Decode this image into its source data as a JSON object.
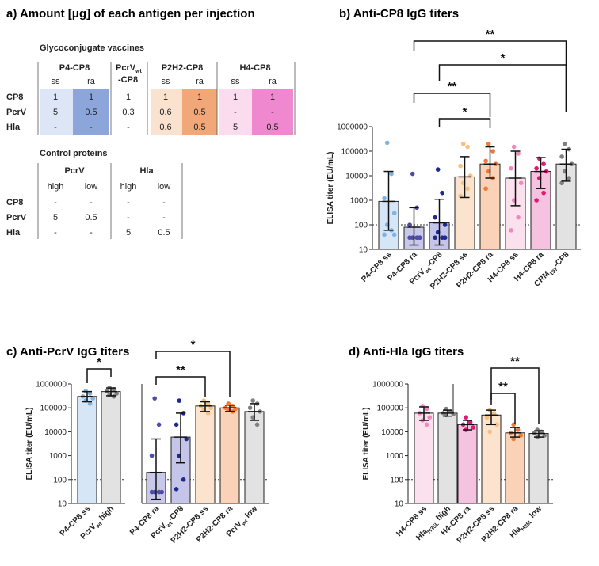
{
  "panel_a": {
    "title": "a) Amount [μg] of each antigen per injection",
    "gly": {
      "subtitle": "Glycoconjugate vaccines",
      "headers": [
        "P4-CP8",
        "PcrV",
        "wt",
        "-CP8",
        "P2H2-CP8",
        "H4-CP8"
      ],
      "subheaders": [
        "ss",
        "ra",
        "ss",
        "ra",
        "ss",
        "ra"
      ],
      "row_labels": [
        "CP8",
        "PcrV",
        "Hla"
      ],
      "rows": [
        [
          "1",
          "1",
          "1",
          "1",
          "1",
          "1",
          "1"
        ],
        [
          "5",
          "0.5",
          "0.3",
          "0.6",
          "0.5",
          "-",
          "-"
        ],
        [
          "-",
          "-",
          "-",
          "0.6",
          "0.5",
          "5",
          "0.5"
        ]
      ],
      "colors": {
        "p4_ss": "#dde6f7",
        "p4_ra": "#8ca6dc",
        "p2_ss": "#fbe2cf",
        "p2_ra": "#f2a778",
        "h4_ss": "#fbdcef",
        "h4_ra": "#f088cf"
      }
    },
    "ctrl": {
      "subtitle": "Control proteins",
      "headers": [
        "PcrV",
        "Hla"
      ],
      "subheaders": [
        "high",
        "low",
        "high",
        "low"
      ],
      "row_labels": [
        "CP8",
        "PcrV",
        "Hla"
      ],
      "rows": [
        [
          "-",
          "-",
          "-",
          "-"
        ],
        [
          "5",
          "0.5",
          "-",
          "-"
        ],
        [
          "-",
          "-",
          "5",
          "0.5"
        ]
      ]
    }
  },
  "panel_b": {
    "title": "b) Anti-CP8 IgG titers",
    "sig_labels": [
      "**",
      "*",
      "**",
      "*"
    ]
  },
  "panel_c": {
    "title": "c) Anti-PcrV IgG titers",
    "sig_labels": [
      "*",
      "*",
      "**"
    ]
  },
  "panel_d": {
    "title": "d) Anti-Hla IgG titers",
    "sig_labels": [
      "**",
      "**"
    ]
  },
  "chart_data": [
    {
      "id": "b",
      "type": "bar",
      "scale": "log",
      "title": "Anti-CP8 IgG titers",
      "ylabel": "ELISA titer (EU/mL)",
      "ylim": [
        10,
        1000000
      ],
      "yticks": [
        "10",
        "100",
        "1000",
        "10000",
        "100000",
        "1000000"
      ],
      "threshold": 100,
      "groups": [
        {
          "label": "P4-CP8 ss",
          "mean": 900,
          "lo": 60,
          "hi": 15000,
          "fill": "#d6e6f7",
          "dot": "#7fb3e2",
          "points": [
            220000,
            12000,
            1200,
            300,
            100,
            60,
            40,
            40
          ]
        },
        {
          "label": "P4-CP8 ra",
          "mean": 80,
          "lo": 15,
          "hi": 500,
          "fill": "#c8c8ea",
          "dot": "#4d4da8",
          "points": [
            12000,
            500,
            100,
            30,
            30,
            30,
            30,
            30
          ]
        },
        {
          "label": "PcrV",
          "sub": "wt",
          "tail": "-CP8",
          "mean": 120,
          "lo": 15,
          "hi": 1100,
          "fill": "#c5c5ea",
          "dot": "#1e2a8c",
          "points": [
            18000,
            2000,
            200,
            100,
            50,
            30,
            30,
            30
          ]
        },
        {
          "label": "P2H2-CP8 ss",
          "mean": 9000,
          "lo": 1300,
          "hi": 60000,
          "fill": "#fce3cd",
          "dot": "#f5c080",
          "points": [
            200000,
            150000,
            25000,
            10000,
            5000,
            3000,
            1500
          ]
        },
        {
          "label": "P2H2-CP8 ra",
          "mean": 30000,
          "lo": 8000,
          "hi": 150000,
          "fill": "#fad2b8",
          "dot": "#f07838",
          "points": [
            200000,
            100000,
            40000,
            30000,
            15000,
            8000,
            3000
          ]
        },
        {
          "label": "H4-CP8 ss",
          "mean": 8000,
          "lo": 600,
          "hi": 100000,
          "fill": "#fbe0ee",
          "dot": "#f088c0",
          "points": [
            150000,
            80000,
            20000,
            5000,
            1000,
            200,
            60
          ]
        },
        {
          "label": "H4-CP8 ra",
          "mean": 15000,
          "lo": 3000,
          "hi": 55000,
          "fill": "#f5c2e0",
          "dot": "#e01a72",
          "points": [
            50000,
            30000,
            20000,
            15000,
            8000,
            2000,
            1000
          ]
        },
        {
          "label": "CRM",
          "sub": "197",
          "tail": "-CP8",
          "mean": 30000,
          "lo": 6000,
          "hi": 120000,
          "fill": "#e2e2e2",
          "dot": "#808080",
          "points": [
            200000,
            120000,
            60000,
            30000,
            15000,
            8000,
            5000
          ]
        }
      ]
    },
    {
      "id": "c",
      "type": "bar",
      "scale": "log",
      "title": "Anti-PcrV IgG titers",
      "ylabel": "ELISA titer (EU/mL)",
      "ylim": [
        10,
        1000000
      ],
      "yticks": [
        "10",
        "100",
        "1000",
        "10000",
        "100000",
        "1000000"
      ],
      "threshold": 100,
      "groups": [
        {
          "label": "P4-CP8 ss",
          "mean": 300000,
          "lo": 180000,
          "hi": 480000,
          "fill": "#d6e6f7",
          "dot": "#7fb3e2",
          "points": [
            500000,
            400000,
            300000,
            250000,
            200000,
            150000
          ]
        },
        {
          "label": "PcrV",
          "sub": "wt",
          "tail": " high",
          "mean": 480000,
          "lo": 320000,
          "hi": 680000,
          "fill": "#e2e2e2",
          "dot": "#808080",
          "points": [
            700000,
            600000,
            500000,
            400000,
            350000,
            300000
          ]
        },
        {
          "label": "P4-CP8 ra",
          "mean": 200,
          "lo": 15,
          "hi": 5000,
          "fill": "#c8c8ea",
          "dot": "#4d4da8",
          "points": [
            250000,
            20000,
            1000,
            30,
            30,
            30,
            30
          ]
        },
        {
          "label": "PcrV",
          "sub": "wt",
          "tail": "-CP8",
          "mean": 6000,
          "lo": 500,
          "hi": 60000,
          "fill": "#c5c5ea",
          "dot": "#1e2a8c",
          "points": [
            200000,
            60000,
            20000,
            5000,
            1000,
            100,
            40
          ]
        },
        {
          "label": "P2H2-CP8 ss",
          "mean": 120000,
          "lo": 70000,
          "hi": 180000,
          "fill": "#fce3cd",
          "dot": "#f5c080",
          "points": [
            200000,
            150000,
            120000,
            100000,
            80000,
            60000
          ]
        },
        {
          "label": "P2H2-CP8 ra",
          "mean": 100000,
          "lo": 70000,
          "hi": 130000,
          "fill": "#fad2b8",
          "dot": "#f07838",
          "points": [
            150000,
            120000,
            100000,
            90000,
            80000,
            70000
          ]
        },
        {
          "label": "PcrV",
          "sub": "wt",
          "tail": " low",
          "mean": 70000,
          "lo": 30000,
          "hi": 150000,
          "fill": "#e2e2e2",
          "dot": "#808080",
          "points": [
            200000,
            150000,
            100000,
            70000,
            40000,
            20000
          ]
        }
      ]
    },
    {
      "id": "d",
      "type": "bar",
      "scale": "log",
      "title": "Anti-Hla IgG titers",
      "ylabel": "ELISA titer (EU/mL)",
      "ylim": [
        10,
        1000000
      ],
      "yticks": [
        "10",
        "100",
        "1000",
        "10000",
        "100000",
        "1000000"
      ],
      "threshold": 100,
      "groups": [
        {
          "label": "H4-CP8 ss",
          "mean": 60000,
          "lo": 30000,
          "hi": 110000,
          "fill": "#fbe0ee",
          "dot": "#f088c0",
          "points": [
            120000,
            90000,
            60000,
            40000,
            30000,
            20000
          ]
        },
        {
          "label": "Hla",
          "sub": "H35L",
          "tail": " high",
          "mean": 60000,
          "lo": 45000,
          "hi": 80000,
          "fill": "#e2e2e2",
          "dot": "#808080",
          "points": [
            90000,
            70000,
            60000,
            55000,
            50000
          ]
        },
        {
          "label": "H4-CP8 ra",
          "mean": 20000,
          "lo": 12000,
          "hi": 30000,
          "fill": "#f5c2e0",
          "dot": "#e01a72",
          "points": [
            40000,
            25000,
            20000,
            15000,
            12000
          ]
        },
        {
          "label": "P2H2-CP8 ss",
          "mean": 50000,
          "lo": 20000,
          "hi": 80000,
          "fill": "#fce3cd",
          "dot": "#f5c080",
          "points": [
            80000,
            60000,
            40000,
            20000,
            10000
          ]
        },
        {
          "label": "P2H2-CP8 ra",
          "mean": 9000,
          "lo": 6000,
          "hi": 15000,
          "fill": "#fad2b8",
          "dot": "#f07838",
          "points": [
            20000,
            12000,
            9000,
            7000,
            5000
          ]
        },
        {
          "label": "Hla",
          "sub": "H35L",
          "tail": " low",
          "mean": 8500,
          "lo": 6000,
          "hi": 11000,
          "fill": "#e2e2e2",
          "dot": "#808080",
          "points": [
            12000,
            10000,
            9000,
            7000,
            6000
          ]
        }
      ]
    }
  ]
}
